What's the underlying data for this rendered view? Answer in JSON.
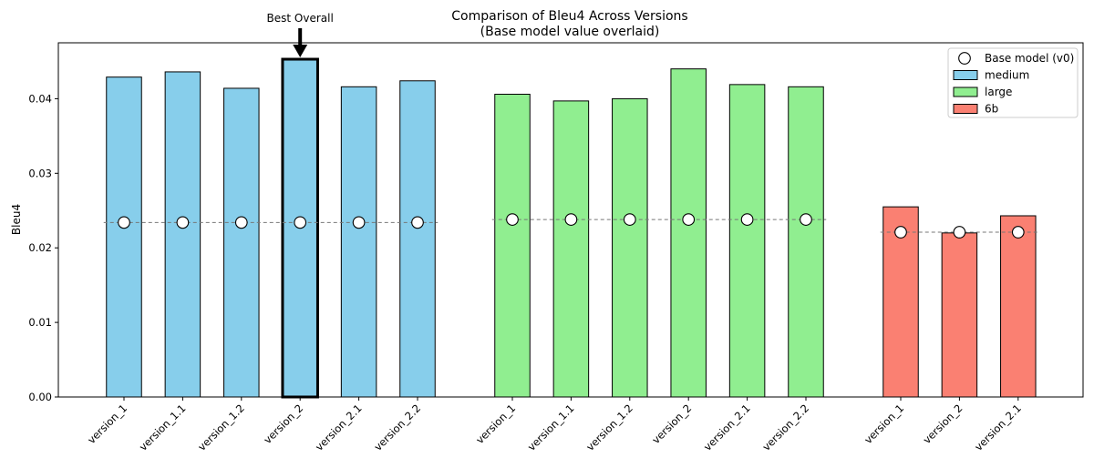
{
  "chart_data": {
    "type": "bar",
    "title_line1": "Comparison of Bleu4 Across Versions",
    "title_line2": "(Base model value overlaid)",
    "xlabel": "",
    "ylabel": "Bleu4",
    "ylim": [
      0,
      0.0475
    ],
    "yticks": [
      0.0,
      0.01,
      0.02,
      0.03,
      0.04
    ],
    "ytick_labels": [
      "0.00",
      "0.01",
      "0.02",
      "0.03",
      "0.04"
    ],
    "grid": false,
    "legend_position": "top-right",
    "groups": [
      {
        "name": "medium",
        "color": "#87CEEB",
        "categories": [
          "version_1",
          "version_1.1",
          "version_1.2",
          "version_2",
          "version_2.1",
          "version_2.2"
        ],
        "values": [
          0.0429,
          0.0436,
          0.0414,
          0.0453,
          0.0416,
          0.0424
        ],
        "base_value": 0.0234
      },
      {
        "name": "large",
        "color": "#90EE90",
        "categories": [
          "version_1",
          "version_1.1",
          "version_1.2",
          "version_2",
          "version_2.1",
          "version_2.2"
        ],
        "values": [
          0.0406,
          0.0397,
          0.04,
          0.044,
          0.0419,
          0.0416
        ],
        "base_value": 0.0238
      },
      {
        "name": "6b",
        "color": "#FA8072",
        "categories": [
          "version_1",
          "version_2",
          "version_2.1"
        ],
        "values": [
          0.0255,
          0.022,
          0.0243
        ],
        "base_value": 0.0221
      }
    ],
    "legend": [
      {
        "label": "Base model (v0)",
        "kind": "marker"
      },
      {
        "label": "medium",
        "kind": "patch",
        "color": "#87CEEB"
      },
      {
        "label": "large",
        "kind": "patch",
        "color": "#90EE90"
      },
      {
        "label": "6b",
        "kind": "patch",
        "color": "#FA8072"
      }
    ],
    "annotation": {
      "text": "Best Overall",
      "group": 0,
      "index": 3
    }
  }
}
